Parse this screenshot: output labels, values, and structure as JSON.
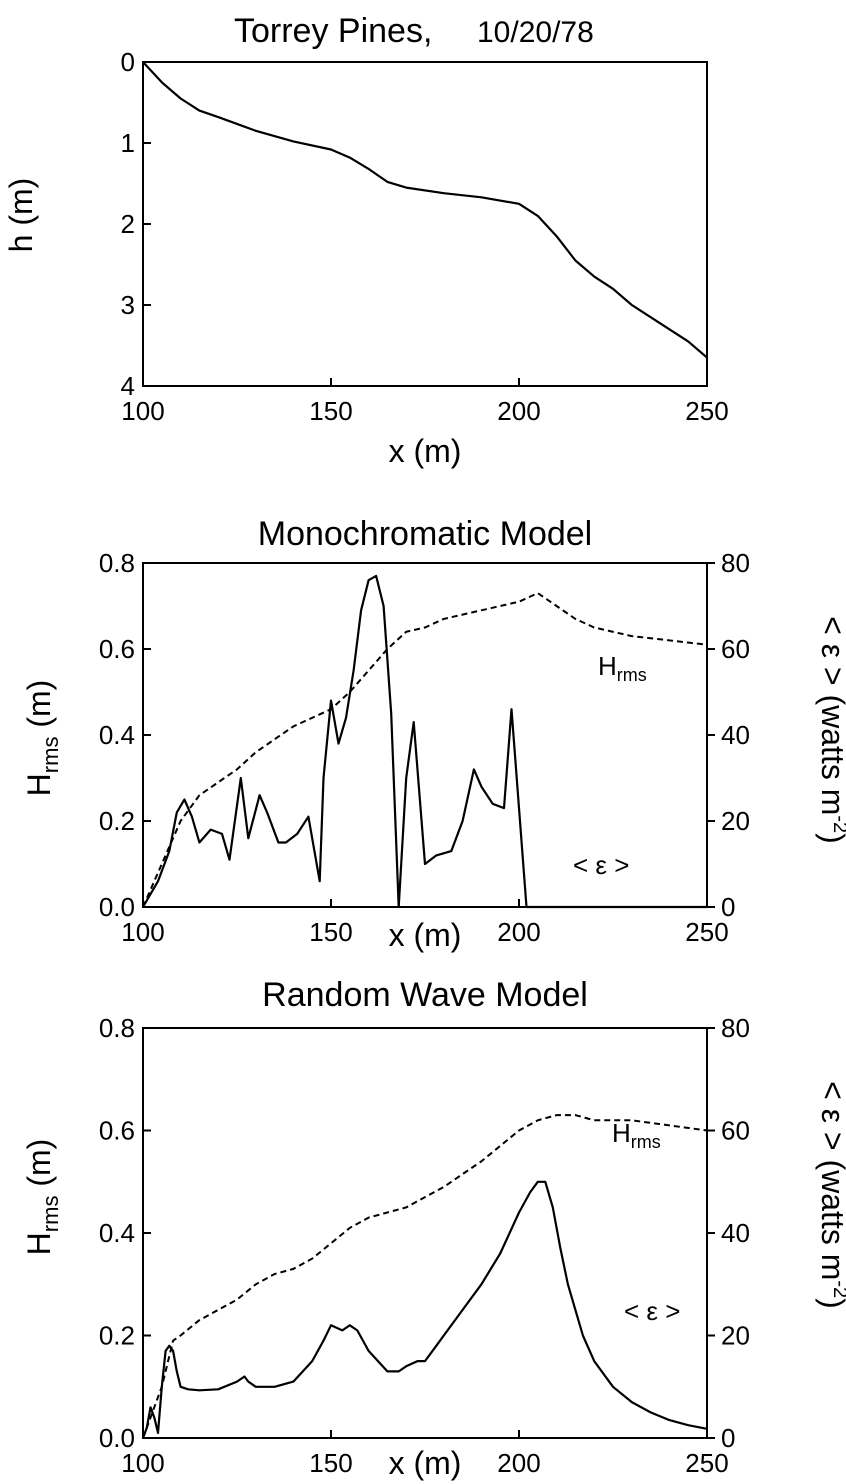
{
  "chart_data": [
    {
      "type": "line",
      "title": "Torrey Pines,",
      "subtitle": "10/20/78",
      "xlabel": "x (m)",
      "ylabel": "h (m)",
      "xlim": [
        100,
        250
      ],
      "ylim": [
        0,
        4
      ],
      "y_inverted": true,
      "xticks": [
        "100",
        "150",
        "200",
        "250"
      ],
      "yticks": [
        "0",
        "1",
        "2",
        "3",
        "4"
      ],
      "series": [
        {
          "style": "solid",
          "x": [
            100,
            105,
            110,
            115,
            120,
            130,
            140,
            150,
            155,
            160,
            165,
            170,
            180,
            190,
            200,
            205,
            210,
            215,
            220,
            225,
            230,
            240,
            245,
            250
          ],
          "y": [
            0,
            0.25,
            0.45,
            0.6,
            0.68,
            0.85,
            0.98,
            1.08,
            1.18,
            1.32,
            1.48,
            1.55,
            1.62,
            1.67,
            1.75,
            1.9,
            2.15,
            2.45,
            2.65,
            2.8,
            3.0,
            3.3,
            3.45,
            3.65
          ]
        }
      ]
    },
    {
      "type": "line",
      "title": "Monochromatic Model",
      "xlabel": "x (m)",
      "ylabel": "H",
      "ylabel_sub": "rms",
      "ylabel_tail": " (m)",
      "y2label": "< ε >   (watts  m",
      "y2label_sup": "-2",
      "y2label_tail": ")",
      "xlim": [
        100,
        250
      ],
      "ylim": [
        0,
        0.8
      ],
      "y2lim": [
        0,
        80
      ],
      "xticks": [
        "100",
        "150",
        "200",
        "250"
      ],
      "yticks": [
        "0.0",
        "0.2",
        "0.4",
        "0.6",
        "0.8"
      ],
      "y2ticks": [
        "0",
        "20",
        "40",
        "60",
        "80"
      ],
      "annotations": {
        "hrms": "H",
        "hrms_sub": "rms",
        "eps": "< ε >"
      },
      "series": [
        {
          "label": "H_rms",
          "style": "dashed",
          "axis": "left",
          "x": [
            100,
            105,
            110,
            115,
            120,
            125,
            130,
            135,
            140,
            145,
            150,
            155,
            160,
            165,
            170,
            175,
            180,
            190,
            200,
            205,
            210,
            215,
            220,
            230,
            240,
            250
          ],
          "y": [
            0,
            0.1,
            0.2,
            0.26,
            0.29,
            0.32,
            0.36,
            0.39,
            0.42,
            0.44,
            0.46,
            0.5,
            0.55,
            0.6,
            0.64,
            0.65,
            0.67,
            0.69,
            0.71,
            0.73,
            0.7,
            0.67,
            0.65,
            0.63,
            0.62,
            0.61
          ]
        },
        {
          "label": "< ε >",
          "style": "solid",
          "axis": "right",
          "x": [
            100,
            104,
            107,
            109,
            111,
            113,
            115,
            118,
            121,
            123,
            126,
            128,
            131,
            133,
            136,
            138,
            141,
            144,
            147,
            148,
            150,
            152,
            154,
            156,
            158,
            160,
            162,
            164,
            166,
            168,
            170,
            172,
            175,
            178,
            182,
            185,
            188,
            190,
            193,
            196,
            198,
            202,
            205,
            210,
            220,
            230,
            240,
            250
          ],
          "y": [
            0,
            6,
            13,
            22,
            25,
            21,
            15,
            18,
            17,
            11,
            30,
            16,
            26,
            22,
            15,
            15,
            17,
            21,
            6,
            30,
            48,
            38,
            44,
            55,
            69,
            76,
            77,
            70,
            45,
            0,
            30,
            43,
            10,
            12,
            13,
            20,
            32,
            28,
            24,
            23,
            46,
            0,
            0,
            0,
            0,
            0,
            0,
            0
          ]
        }
      ]
    },
    {
      "type": "line",
      "title": "Random Wave Model",
      "xlabel": "x (m)",
      "ylabel": "H",
      "ylabel_sub": "rms",
      "ylabel_tail": " (m)",
      "y2label": "< ε >   (watts  m",
      "y2label_sup": "-2",
      "y2label_tail": ")",
      "xlim": [
        100,
        250
      ],
      "ylim": [
        0,
        0.8
      ],
      "y2lim": [
        0,
        80
      ],
      "xticks": [
        "100",
        "150",
        "200",
        "250"
      ],
      "yticks": [
        "0.0",
        "0.2",
        "0.4",
        "0.6",
        "0.8"
      ],
      "y2ticks": [
        "0",
        "20",
        "40",
        "60",
        "80"
      ],
      "annotations": {
        "hrms": "H",
        "hrms_sub": "rms",
        "eps": "< ε >"
      },
      "series": [
        {
          "label": "H_rms",
          "style": "dashed",
          "axis": "left",
          "x": [
            100,
            105,
            108,
            110,
            115,
            120,
            125,
            130,
            135,
            140,
            145,
            150,
            155,
            160,
            165,
            170,
            175,
            180,
            190,
            200,
            205,
            210,
            215,
            220,
            230,
            240,
            250
          ],
          "y": [
            0.0,
            0.1,
            0.19,
            0.2,
            0.23,
            0.25,
            0.27,
            0.3,
            0.32,
            0.33,
            0.35,
            0.38,
            0.41,
            0.43,
            0.44,
            0.45,
            0.47,
            0.49,
            0.54,
            0.6,
            0.62,
            0.63,
            0.63,
            0.62,
            0.62,
            0.61,
            0.6
          ]
        },
        {
          "label": "< ε >",
          "style": "solid",
          "axis": "right",
          "x": [
            100,
            101,
            102,
            103,
            104,
            105,
            106,
            107,
            108,
            109,
            110,
            112,
            115,
            120,
            125,
            127,
            128,
            130,
            135,
            140,
            145,
            148,
            150,
            153,
            155,
            157,
            160,
            165,
            168,
            170,
            173,
            175,
            178,
            180,
            185,
            190,
            195,
            200,
            203,
            205,
            207,
            209,
            211,
            213,
            215,
            217,
            220,
            225,
            230,
            235,
            240,
            245,
            250
          ],
          "y": [
            0,
            2,
            6,
            4,
            1,
            10,
            17,
            18,
            17,
            13,
            10,
            9.5,
            9.3,
            9.5,
            11,
            12,
            11,
            10,
            10,
            11,
            15,
            19,
            22,
            21,
            22,
            21,
            17,
            13,
            13,
            14,
            15,
            15,
            18,
            20,
            25,
            30,
            36,
            44,
            48,
            50,
            50,
            45,
            37,
            30,
            25,
            20,
            15,
            10,
            7,
            5,
            3.5,
            2.5,
            1.8
          ]
        }
      ]
    }
  ]
}
